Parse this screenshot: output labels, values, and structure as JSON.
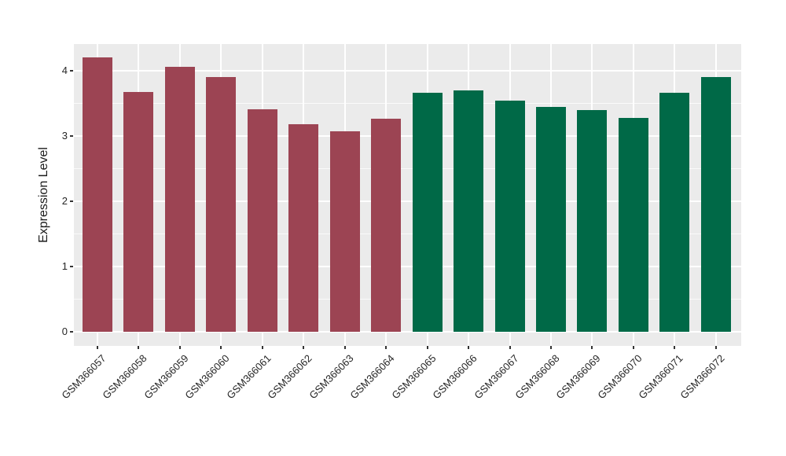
{
  "chart_data": {
    "type": "bar",
    "title": "",
    "xlabel": "",
    "ylabel": "Expression Level",
    "categories": [
      "GSM366057",
      "GSM366058",
      "GSM366059",
      "GSM366060",
      "GSM366061",
      "GSM366062",
      "GSM366063",
      "GSM366064",
      "GSM366065",
      "GSM366066",
      "GSM366067",
      "GSM366068",
      "GSM366069",
      "GSM366070",
      "GSM366071",
      "GSM366072"
    ],
    "values": [
      4.2,
      3.67,
      4.06,
      3.9,
      3.41,
      3.18,
      3.07,
      3.26,
      3.66,
      3.7,
      3.54,
      3.44,
      3.4,
      3.28,
      3.66,
      3.9
    ],
    "bar_groups": [
      {
        "name": "group-1-maroon",
        "color": "#9C4453",
        "from_index": 0,
        "to_index": 7
      },
      {
        "name": "group-2-green",
        "color": "#006947",
        "from_index": 8,
        "to_index": 15
      }
    ],
    "yticks": [
      0,
      1,
      2,
      3,
      4
    ],
    "ylim": [
      -0.22,
      4.42
    ],
    "grid": {
      "major": true,
      "minor": true,
      "color": "#FFFFFF"
    },
    "legend_position": "none",
    "panel_background": "#EBEBEB",
    "text_color": "#262626"
  }
}
